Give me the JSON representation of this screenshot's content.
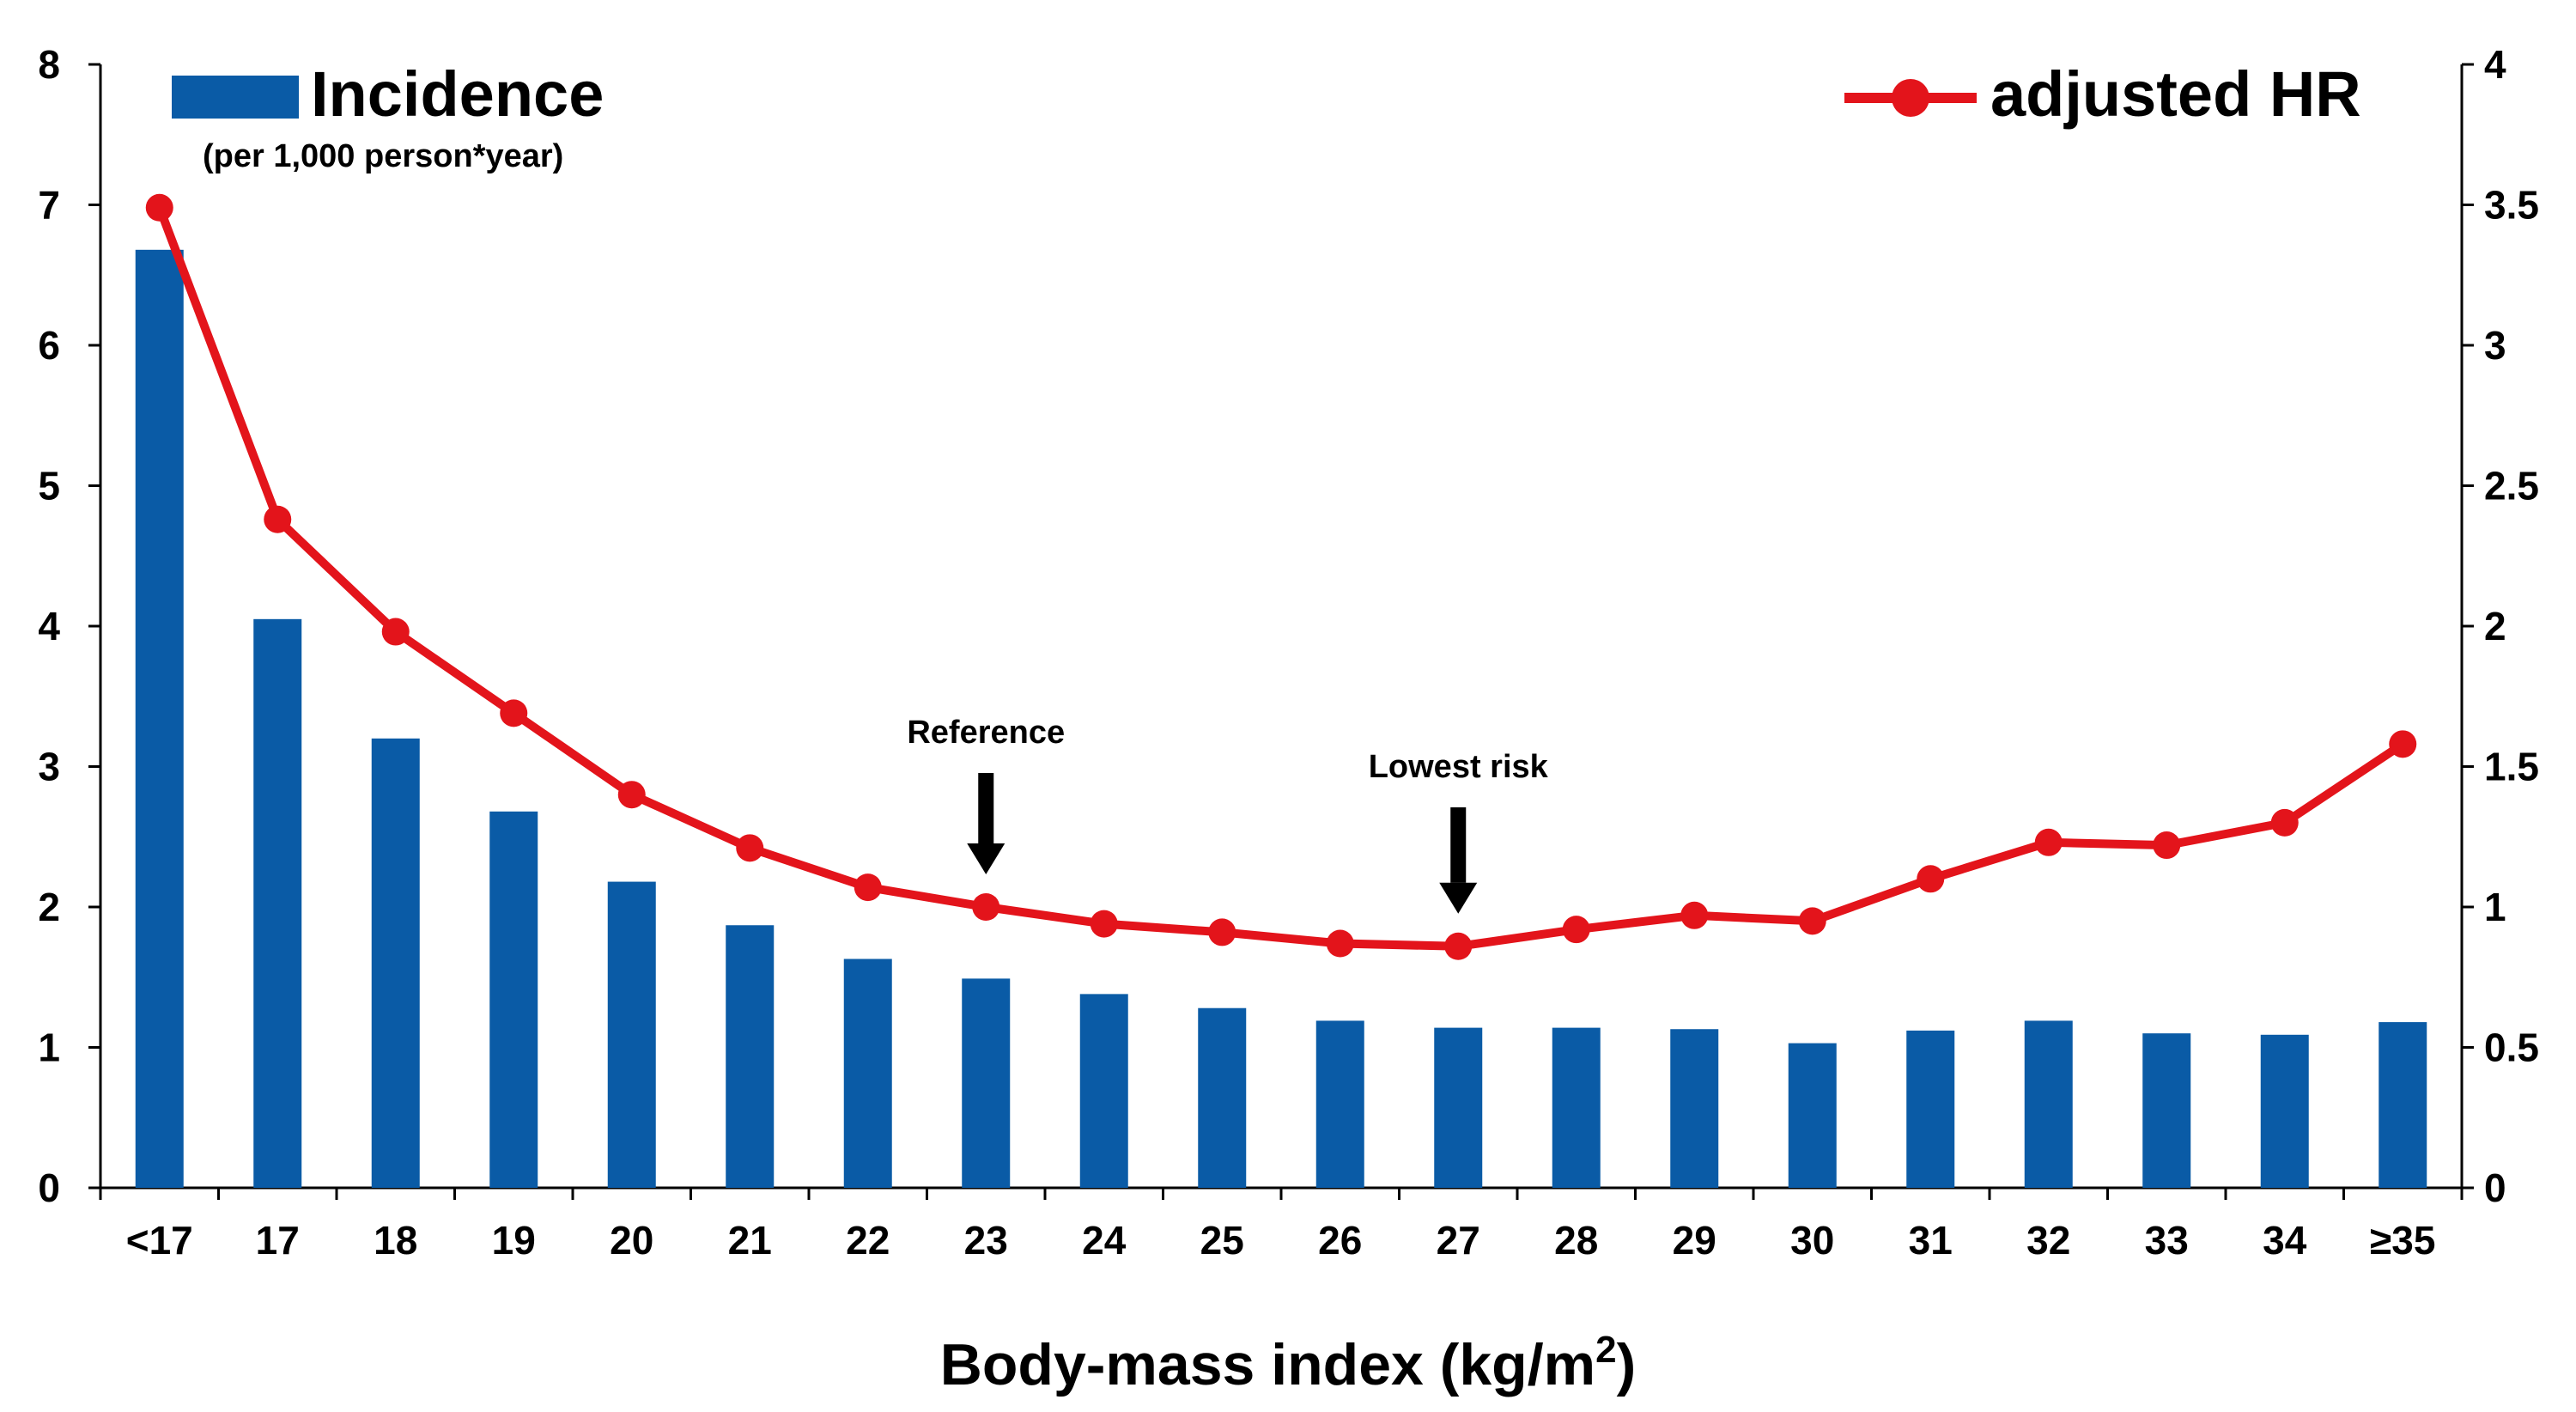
{
  "chart_data": {
    "type": "bar+line",
    "categories": [
      "<17",
      "17",
      "18",
      "19",
      "20",
      "21",
      "22",
      "23",
      "24",
      "25",
      "26",
      "27",
      "28",
      "29",
      "30",
      "31",
      "32",
      "33",
      "34",
      "≥35"
    ],
    "series": [
      {
        "name": "Incidence",
        "axis": "left",
        "kind": "bar",
        "color": "#0A5BA6",
        "values": [
          6.68,
          4.05,
          3.2,
          2.68,
          2.18,
          1.87,
          1.63,
          1.49,
          1.38,
          1.28,
          1.19,
          1.14,
          1.14,
          1.13,
          1.03,
          1.12,
          1.19,
          1.1,
          1.09,
          1.18
        ]
      },
      {
        "name": "adjusted HR",
        "axis": "right",
        "kind": "line",
        "color": "#E3141B",
        "values": [
          3.49,
          2.38,
          1.98,
          1.69,
          1.4,
          1.21,
          1.07,
          1.0,
          0.94,
          0.91,
          0.87,
          0.86,
          0.92,
          0.97,
          0.95,
          1.1,
          1.23,
          1.22,
          1.3,
          1.58
        ]
      }
    ],
    "y_left": {
      "min": 0,
      "max": 8,
      "ticks": [
        "0",
        "1",
        "2",
        "3",
        "4",
        "5",
        "6",
        "7",
        "8"
      ]
    },
    "y_right": {
      "min": 0,
      "max": 4,
      "ticks": [
        "0",
        "0.5",
        "1",
        "1.5",
        "2",
        "2.5",
        "3",
        "3.5",
        "4"
      ]
    },
    "xlabel": {
      "main": "Body-mass index (kg/m",
      "sup": "2",
      "end": ")"
    },
    "legend": {
      "bar_label": "Incidence",
      "bar_sublabel": "(per 1,000 person*year)",
      "line_label": "adjusted HR"
    },
    "annotations": [
      {
        "text": "Reference",
        "category": "23"
      },
      {
        "text": "Lowest risk",
        "category": "27"
      }
    ]
  }
}
